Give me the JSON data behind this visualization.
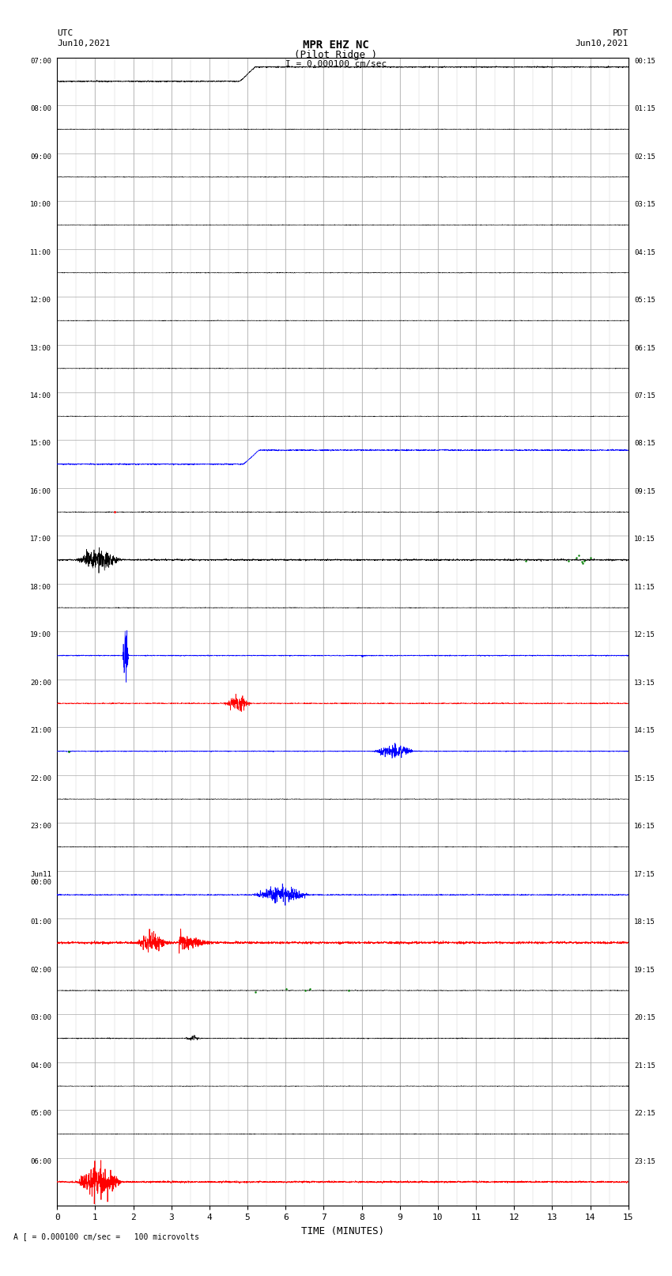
{
  "title_line1": "MPR EHZ NC",
  "title_line2": "(Pilot Ridge )",
  "scale_text": "I = 0.000100 cm/sec",
  "left_label_line1": "UTC",
  "left_label_line2": "Jun10,2021",
  "right_label_line1": "PDT",
  "right_label_line2": "Jun10,2021",
  "bottom_label": "A [ = 0.000100 cm/sec =   100 microvolts",
  "xlabel": "TIME (MINUTES)",
  "utc_times": [
    "07:00",
    "08:00",
    "09:00",
    "10:00",
    "11:00",
    "12:00",
    "13:00",
    "14:00",
    "15:00",
    "16:00",
    "17:00",
    "18:00",
    "19:00",
    "20:00",
    "21:00",
    "22:00",
    "23:00",
    "Jun11\n00:00",
    "01:00",
    "02:00",
    "03:00",
    "04:00",
    "05:00",
    "06:00"
  ],
  "pdt_times": [
    "00:15",
    "01:15",
    "02:15",
    "03:15",
    "04:15",
    "05:15",
    "06:15",
    "07:15",
    "08:15",
    "09:15",
    "10:15",
    "11:15",
    "12:15",
    "13:15",
    "14:15",
    "15:15",
    "16:15",
    "17:15",
    "18:15",
    "19:15",
    "20:15",
    "21:15",
    "22:15",
    "23:15"
  ],
  "num_rows": 24,
  "x_min": 0,
  "x_max": 15,
  "bg_color": "#ffffff",
  "grid_color": "#aaaaaa",
  "fig_width": 8.5,
  "fig_height": 16.13
}
